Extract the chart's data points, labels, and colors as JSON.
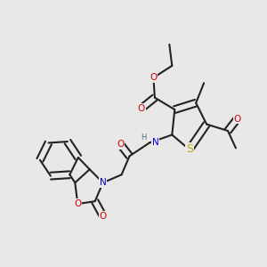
{
  "bg": "#e8e8e8",
  "bc": "#222222",
  "lw": 1.5,
  "dbo": 0.13,
  "colors": {
    "O": "#cc0000",
    "N": "#0000cc",
    "S": "#bbaa00",
    "H": "#447777",
    "C": "#222222"
  },
  "fs": 7.5
}
